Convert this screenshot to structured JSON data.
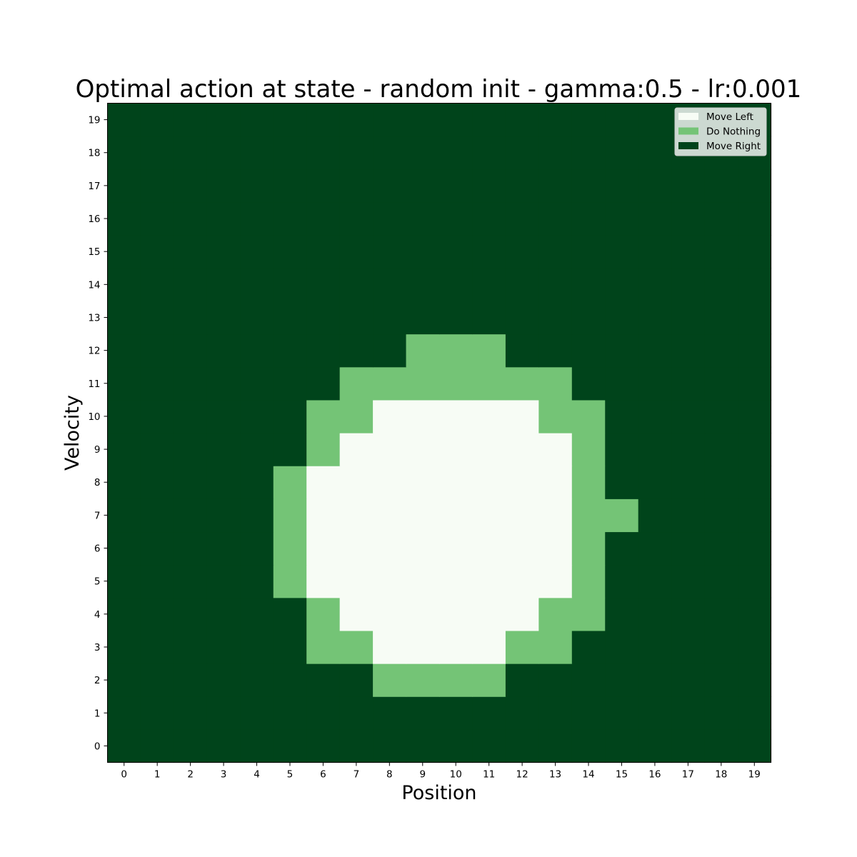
{
  "chart_data": {
    "type": "heatmap",
    "title": "Optimal action at state - random init - gamma:0.5 - lr:0.001",
    "xlabel": "Position",
    "ylabel": "Velocity",
    "x_ticks": [
      "0",
      "1",
      "2",
      "3",
      "4",
      "5",
      "6",
      "7",
      "8",
      "9",
      "10",
      "11",
      "12",
      "13",
      "14",
      "15",
      "16",
      "17",
      "18",
      "19"
    ],
    "y_ticks": [
      "0",
      "1",
      "2",
      "3",
      "4",
      "5",
      "6",
      "7",
      "8",
      "9",
      "10",
      "11",
      "12",
      "13",
      "14",
      "15",
      "16",
      "17",
      "18",
      "19"
    ],
    "grid": false,
    "legend_position": "top-right",
    "categories": [
      {
        "value": 0,
        "name": "Move Left",
        "color": "#f7fcf5"
      },
      {
        "value": 1,
        "name": "Do Nothing",
        "color": "#74c476"
      },
      {
        "value": 2,
        "name": "Move Right",
        "color": "#00441b"
      }
    ],
    "rows_by_velocity": [
      [
        2,
        2,
        2,
        2,
        2,
        2,
        2,
        2,
        2,
        2,
        2,
        2,
        2,
        2,
        2,
        2,
        2,
        2,
        2,
        2
      ],
      [
        2,
        2,
        2,
        2,
        2,
        2,
        2,
        2,
        2,
        2,
        2,
        2,
        2,
        2,
        2,
        2,
        2,
        2,
        2,
        2
      ],
      [
        2,
        2,
        2,
        2,
        2,
        2,
        2,
        2,
        1,
        1,
        1,
        1,
        2,
        2,
        2,
        2,
        2,
        2,
        2,
        2
      ],
      [
        2,
        2,
        2,
        2,
        2,
        2,
        1,
        1,
        0,
        0,
        0,
        0,
        1,
        1,
        2,
        2,
        2,
        2,
        2,
        2
      ],
      [
        2,
        2,
        2,
        2,
        2,
        2,
        1,
        0,
        0,
        0,
        0,
        0,
        0,
        1,
        1,
        2,
        2,
        2,
        2,
        2
      ],
      [
        2,
        2,
        2,
        2,
        2,
        1,
        0,
        0,
        0,
        0,
        0,
        0,
        0,
        0,
        1,
        2,
        2,
        2,
        2,
        2
      ],
      [
        2,
        2,
        2,
        2,
        2,
        1,
        0,
        0,
        0,
        0,
        0,
        0,
        0,
        0,
        1,
        2,
        2,
        2,
        2,
        2
      ],
      [
        2,
        2,
        2,
        2,
        2,
        1,
        0,
        0,
        0,
        0,
        0,
        0,
        0,
        0,
        1,
        1,
        2,
        2,
        2,
        2
      ],
      [
        2,
        2,
        2,
        2,
        2,
        1,
        0,
        0,
        0,
        0,
        0,
        0,
        0,
        0,
        1,
        2,
        2,
        2,
        2,
        2
      ],
      [
        2,
        2,
        2,
        2,
        2,
        2,
        1,
        0,
        0,
        0,
        0,
        0,
        0,
        0,
        1,
        2,
        2,
        2,
        2,
        2
      ],
      [
        2,
        2,
        2,
        2,
        2,
        2,
        1,
        1,
        0,
        0,
        0,
        0,
        0,
        1,
        1,
        2,
        2,
        2,
        2,
        2
      ],
      [
        2,
        2,
        2,
        2,
        2,
        2,
        2,
        1,
        1,
        1,
        1,
        1,
        1,
        1,
        2,
        2,
        2,
        2,
        2,
        2
      ],
      [
        2,
        2,
        2,
        2,
        2,
        2,
        2,
        2,
        2,
        1,
        1,
        1,
        2,
        2,
        2,
        2,
        2,
        2,
        2,
        2
      ],
      [
        2,
        2,
        2,
        2,
        2,
        2,
        2,
        2,
        2,
        2,
        2,
        2,
        2,
        2,
        2,
        2,
        2,
        2,
        2,
        2
      ],
      [
        2,
        2,
        2,
        2,
        2,
        2,
        2,
        2,
        2,
        2,
        2,
        2,
        2,
        2,
        2,
        2,
        2,
        2,
        2,
        2
      ],
      [
        2,
        2,
        2,
        2,
        2,
        2,
        2,
        2,
        2,
        2,
        2,
        2,
        2,
        2,
        2,
        2,
        2,
        2,
        2,
        2
      ],
      [
        2,
        2,
        2,
        2,
        2,
        2,
        2,
        2,
        2,
        2,
        2,
        2,
        2,
        2,
        2,
        2,
        2,
        2,
        2,
        2
      ],
      [
        2,
        2,
        2,
        2,
        2,
        2,
        2,
        2,
        2,
        2,
        2,
        2,
        2,
        2,
        2,
        2,
        2,
        2,
        2,
        2
      ],
      [
        2,
        2,
        2,
        2,
        2,
        2,
        2,
        2,
        2,
        2,
        2,
        2,
        2,
        2,
        2,
        2,
        2,
        2,
        2,
        2
      ],
      [
        2,
        2,
        2,
        2,
        2,
        2,
        2,
        2,
        2,
        2,
        2,
        2,
        2,
        2,
        2,
        2,
        2,
        2,
        2,
        2
      ]
    ]
  }
}
